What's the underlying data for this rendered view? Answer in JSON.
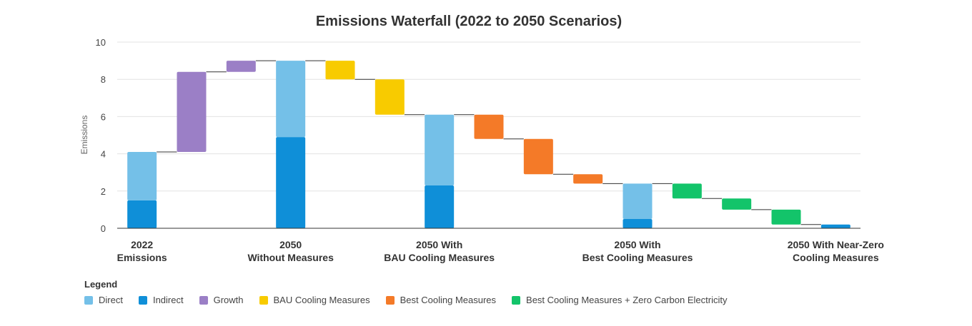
{
  "chart_data": {
    "type": "bar",
    "subtype": "waterfall",
    "title": "Emissions Waterfall (2022 to 2050 Scenarios)",
    "xlabel": "",
    "ylabel": "Emissions",
    "ylim": [
      0,
      10
    ],
    "yticks": [
      0,
      2,
      4,
      6,
      8,
      10
    ],
    "grid": true,
    "legend_title": "Legend",
    "legend_position": "bottom-left",
    "colors": {
      "Direct": "#74c0e8",
      "Indirect": "#0f8fd8",
      "Growth": "#9b7fc6",
      "BAU Cooling Measures": "#f8cb00",
      "Best Cooling Measures": "#f47a28",
      "Best Cooling Measures + Zero Carbon Electricity": "#13c46a"
    },
    "legend": [
      "Direct",
      "Indirect",
      "Growth",
      "BAU Cooling Measures",
      "Best Cooling Measures",
      "Best Cooling Measures + Zero Carbon Electricity"
    ],
    "category_labels": [
      [
        "2022",
        "Emissions"
      ],
      [
        "2050",
        "Without Measures"
      ],
      [
        "2050 With",
        "BAU Cooling Measures"
      ],
      [
        "2050 With",
        "Best Cooling Measures"
      ],
      [
        "2050 With Near-Zero",
        "Cooling Measures"
      ]
    ],
    "bars": [
      {
        "kind": "total",
        "label": "2022 Emissions",
        "indirect": 1.5,
        "direct": 2.6
      },
      {
        "kind": "step",
        "series": "Growth",
        "from": 4.1,
        "to": 8.4
      },
      {
        "kind": "step",
        "series": "Growth",
        "from": 8.4,
        "to": 9.0
      },
      {
        "kind": "total",
        "label": "2050 Without Measures",
        "indirect": 4.9,
        "direct": 4.1
      },
      {
        "kind": "step",
        "series": "BAU Cooling Measures",
        "from": 9.0,
        "to": 8.0
      },
      {
        "kind": "step",
        "series": "BAU Cooling Measures",
        "from": 8.0,
        "to": 6.1
      },
      {
        "kind": "total",
        "label": "2050 With BAU Cooling Measures",
        "indirect": 2.3,
        "direct": 3.8
      },
      {
        "kind": "step",
        "series": "Best Cooling Measures",
        "from": 6.1,
        "to": 4.8
      },
      {
        "kind": "step",
        "series": "Best Cooling Measures",
        "from": 4.8,
        "to": 2.9
      },
      {
        "kind": "step",
        "series": "Best Cooling Measures",
        "from": 2.9,
        "to": 2.4
      },
      {
        "kind": "total",
        "label": "2050 With Best Cooling Measures",
        "indirect": 0.5,
        "direct": 1.9
      },
      {
        "kind": "step",
        "series": "Best Cooling Measures + Zero Carbon Electricity",
        "from": 2.4,
        "to": 1.6
      },
      {
        "kind": "step",
        "series": "Best Cooling Measures + Zero Carbon Electricity",
        "from": 1.6,
        "to": 1.0
      },
      {
        "kind": "step",
        "series": "Best Cooling Measures + Zero Carbon Electricity",
        "from": 1.0,
        "to": 0.2
      },
      {
        "kind": "total",
        "label": "2050 With Near-Zero Cooling Measures",
        "indirect": 0.2,
        "direct": 0.0
      }
    ]
  }
}
